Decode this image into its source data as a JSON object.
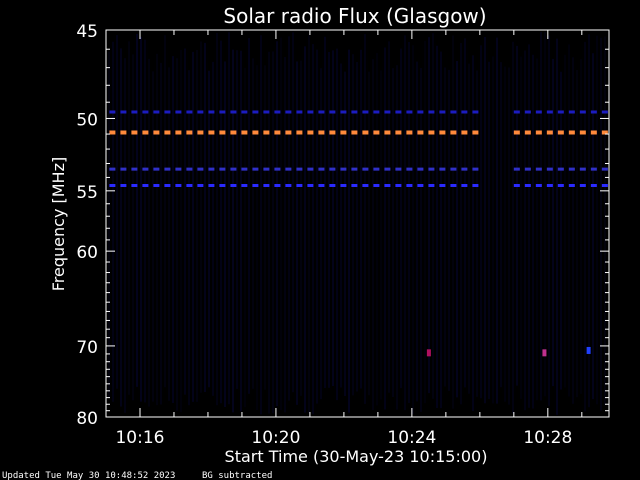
{
  "chart_data": {
    "type": "heatmap",
    "title": "Solar radio Flux (Glasgow)",
    "xlabel": "Start Time (30-May-23 10:15:00)",
    "ylabel": "Frequency [MHz]",
    "x_tick_labels": [
      "10:16",
      "10:20",
      "10:24",
      "10:28"
    ],
    "x_ticks_minutes": [
      16,
      20,
      24,
      28
    ],
    "xlim_minutes": [
      15.0,
      29.8
    ],
    "y_ticks": [
      45,
      50,
      55,
      60,
      70,
      80
    ],
    "ylim": [
      45,
      80
    ],
    "y_scale": "reciprocal",
    "emission_lines": [
      {
        "freq": 50.9,
        "color": "#ff8a3c",
        "segments": [
          [
            15.1,
            26.0
          ],
          [
            27.0,
            29.8
          ]
        ]
      },
      {
        "freq": 53.4,
        "color": "#3030c8",
        "segments": [
          [
            15.1,
            26.0
          ],
          [
            27.0,
            29.8
          ]
        ]
      },
      {
        "freq": 54.6,
        "color": "#2a2aff",
        "segments": [
          [
            15.1,
            26.0
          ],
          [
            27.0,
            29.8
          ]
        ]
      },
      {
        "freq": 49.6,
        "color": "#1c1cc0",
        "segments": [
          [
            15.1,
            26.0
          ],
          [
            27.0,
            29.8
          ]
        ]
      }
    ],
    "spots": [
      {
        "time": 24.5,
        "freq": 70.8,
        "color": "#b01060"
      },
      {
        "time": 27.9,
        "freq": 70.8,
        "color": "#c03090"
      },
      {
        "time": 29.2,
        "freq": 70.5,
        "color": "#2040ff"
      }
    ],
    "colors": {
      "background": "#000000",
      "axes": "#ffffff",
      "noise": "#0a0a50"
    }
  },
  "footer": {
    "updated": "Updated Tue May 30 10:48:52 2023",
    "note": "BG subtracted"
  }
}
